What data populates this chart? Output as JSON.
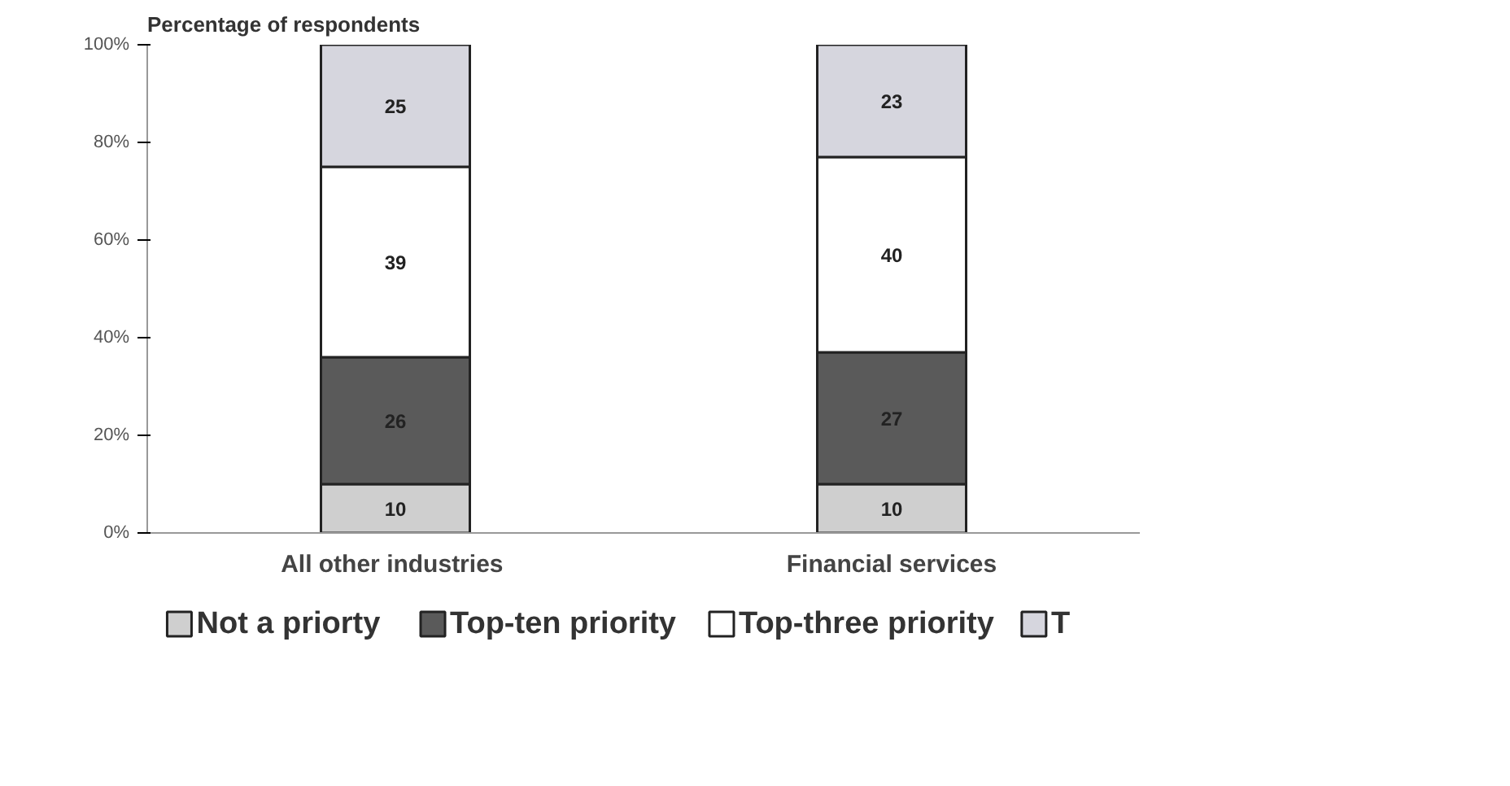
{
  "chart_data": {
    "type": "bar",
    "stacked": true,
    "title": "Percentage of respondents",
    "categories": [
      "All other  industries",
      "Financial services"
    ],
    "series": [
      {
        "name": "Not a priorty",
        "color": "#cfcfcf",
        "values": [
          10,
          10
        ]
      },
      {
        "name": "Top-ten priority",
        "color": "#5a5a5a",
        "values": [
          26,
          27
        ]
      },
      {
        "name": "Top-three priority",
        "color": "#ffffff",
        "values": [
          39,
          40
        ]
      },
      {
        "name": "T",
        "color": "#d6d6de",
        "values": [
          25,
          23
        ]
      }
    ],
    "ylim": [
      0,
      100
    ],
    "yticks": [
      {
        "value": 0,
        "label": "0%"
      },
      {
        "value": 20,
        "label": "20%"
      },
      {
        "value": 40,
        "label": "40%"
      },
      {
        "value": 60,
        "label": "60%"
      },
      {
        "value": 80,
        "label": "80%"
      },
      {
        "value": 100,
        "label": "100%"
      }
    ],
    "data_labels": true,
    "grid": false,
    "legend": "bottom"
  }
}
